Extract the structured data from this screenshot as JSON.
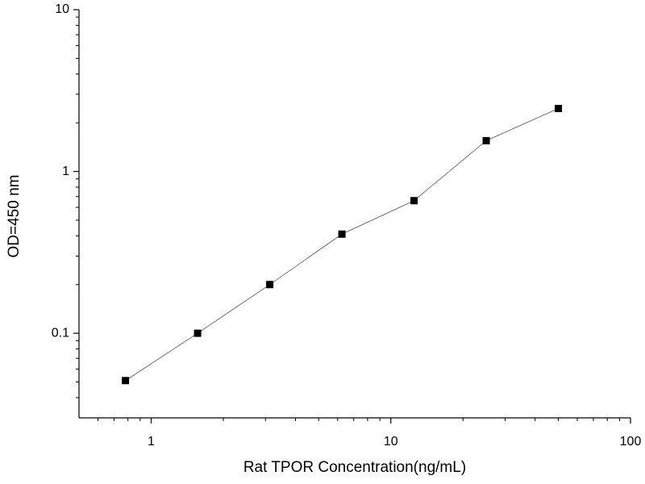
{
  "chart_data": {
    "type": "line",
    "x_label": "Rat TPOR Concentration(ng/mL)",
    "y_label": "OD=450 nm",
    "x": [
      0.78125,
      1.5625,
      3.125,
      6.25,
      12.5,
      25,
      50
    ],
    "values": [
      0.051,
      0.1,
      0.2,
      0.41,
      0.66,
      1.55,
      2.45
    ],
    "color": "#000000",
    "marker": "square",
    "xscale": "log",
    "yscale": "log",
    "xlim": [
      0.5,
      100
    ],
    "ylim": [
      0.03,
      10
    ],
    "xticks": [
      1,
      10,
      100
    ],
    "yticks": [
      0.1,
      1,
      10
    ],
    "xminorticks": [
      0.6,
      0.7,
      0.8,
      0.9,
      2,
      3,
      4,
      5,
      6,
      7,
      8,
      9,
      20,
      30,
      40,
      50,
      60,
      70,
      80,
      90
    ],
    "yminorticks": [
      0.04,
      0.05,
      0.06,
      0.07,
      0.08,
      0.09,
      0.2,
      0.3,
      0.4,
      0.5,
      0.6,
      0.7,
      0.8,
      0.9,
      2,
      3,
      4,
      5,
      6,
      7,
      8,
      9
    ],
    "grid": false
  }
}
